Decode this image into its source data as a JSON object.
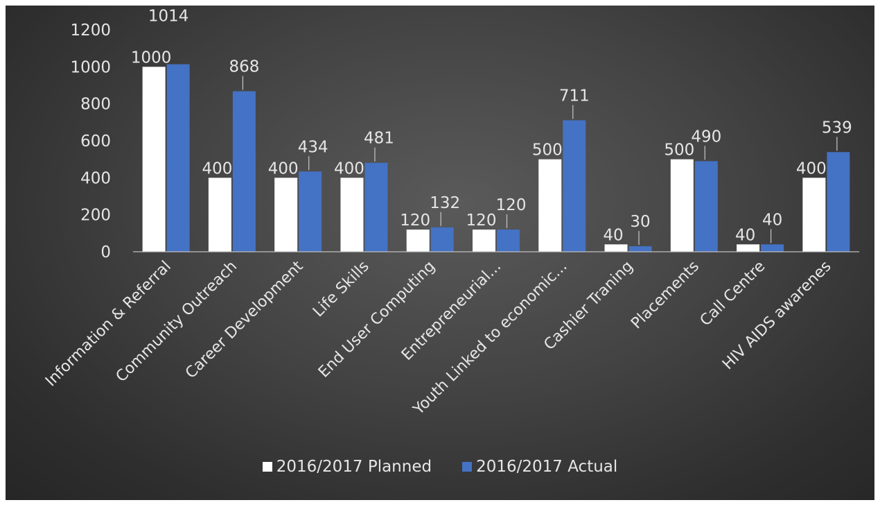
{
  "chart_data": {
    "type": "bar",
    "title": "",
    "xlabel": "",
    "ylabel": "",
    "categories": [
      "Information & Referral",
      "Community Outreach",
      "Career Development",
      "Life Skills",
      "End User Computing",
      "Entrepreneurial...",
      "Youth Linked to economic...",
      "Cashier Traning",
      "Placements",
      "Call Centre",
      "HIV AIDS awarenes"
    ],
    "series": [
      {
        "name": "2016/2017 Planned",
        "color": "#ffffff",
        "values": [
          1000,
          400,
          400,
          400,
          120,
          120,
          500,
          40,
          500,
          40,
          400
        ]
      },
      {
        "name": "2016/2017 Actual",
        "color": "#4472c4",
        "values": [
          1014,
          868,
          434,
          481,
          132,
          120,
          711,
          30,
          490,
          40,
          539
        ]
      }
    ],
    "ylim": [
      0,
      1200
    ],
    "yticks": [
      0,
      200,
      400,
      600,
      800,
      1000,
      1200
    ],
    "grid": false,
    "legend_position": "bottom",
    "data_labels": true
  }
}
